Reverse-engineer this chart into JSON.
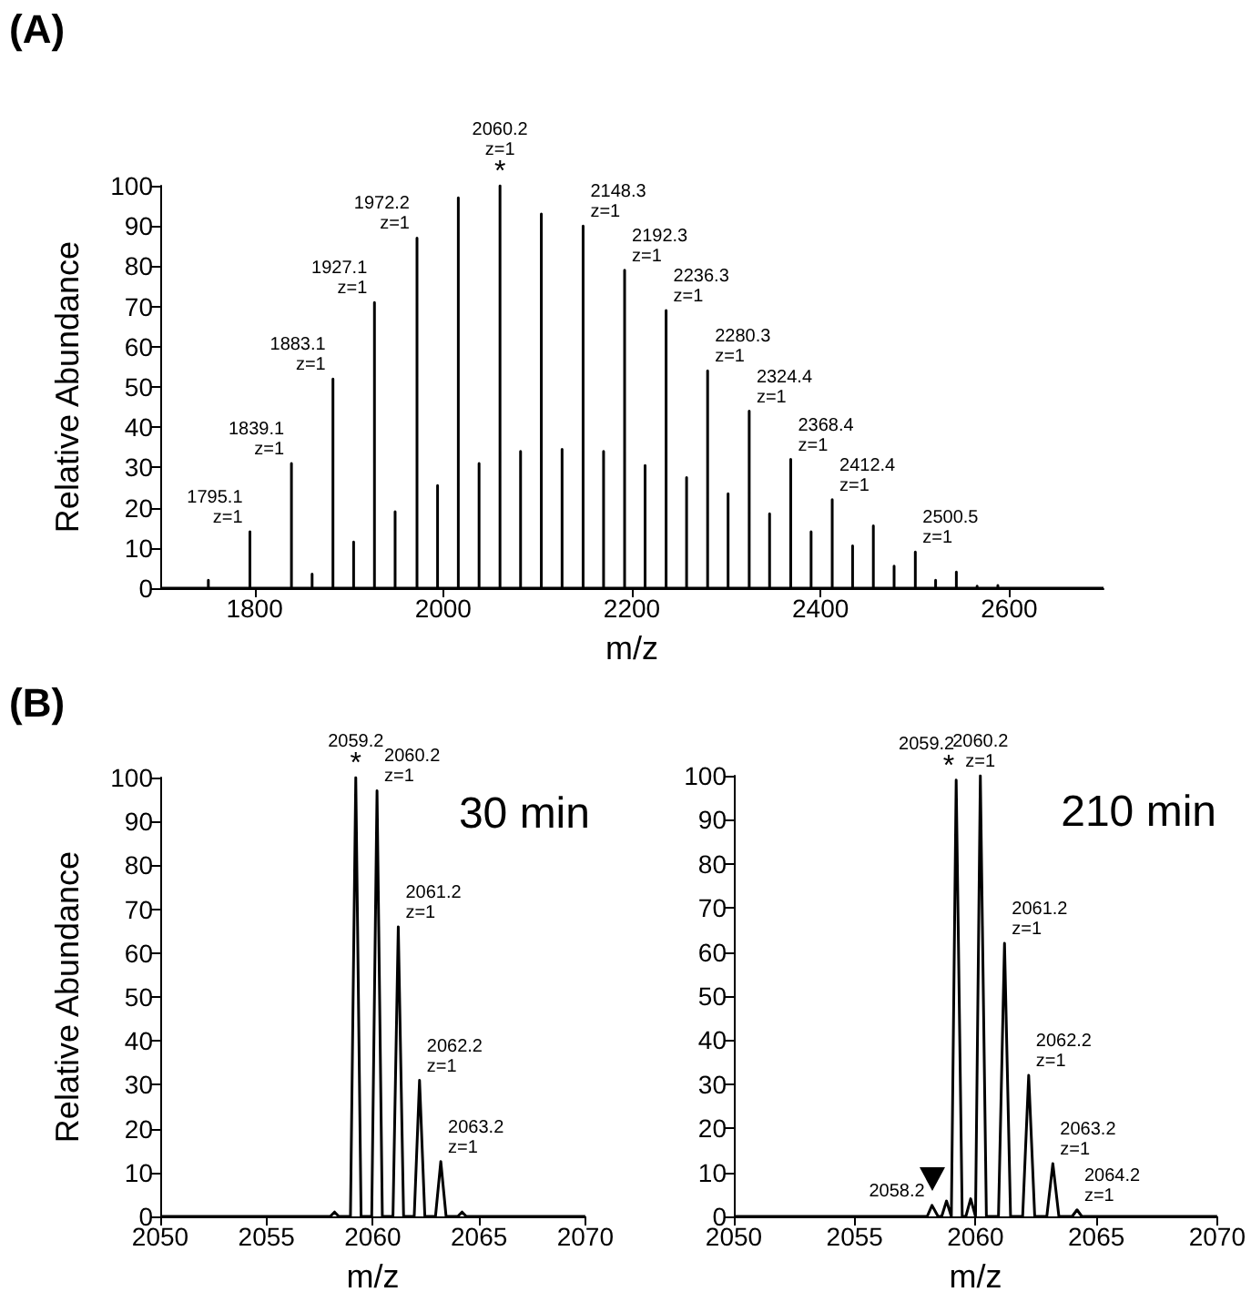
{
  "chart_data": [
    {
      "type": "line",
      "title": "(A)",
      "xlabel": "m/z",
      "ylabel": "Relative Abundance",
      "xlim": [
        1700,
        2700
      ],
      "xticks": [
        1800,
        2000,
        2200,
        2400,
        2600
      ],
      "ylim": [
        0,
        100
      ],
      "yticks": [
        0,
        10,
        20,
        30,
        40,
        50,
        60,
        70,
        80,
        90,
        100
      ],
      "grid": false,
      "marker": "none",
      "line_style": "solid",
      "series": [
        {
          "color": "#000000",
          "x": [
            1700,
            1751,
            1751,
            1751,
            1795.1,
            1795.1,
            1795.1,
            1839.1,
            1839.1,
            1839.1,
            1861,
            1861,
            1861,
            1883.1,
            1883.1,
            1883.1,
            1905,
            1905,
            1905,
            1927.1,
            1927.1,
            1927.1,
            1949,
            1949,
            1949,
            1972.2,
            1972.2,
            1972.2,
            1994,
            1994,
            1994,
            2016,
            2016,
            2016,
            2038,
            2038,
            2038,
            2060.2,
            2060.2,
            2060.2,
            2082,
            2082,
            2082,
            2104,
            2104,
            2104,
            2126,
            2126,
            2126,
            2148.3,
            2148.3,
            2148.3,
            2170,
            2170,
            2170,
            2192.3,
            2192.3,
            2192.3,
            2214,
            2214,
            2214,
            2236.3,
            2236.3,
            2236.3,
            2258,
            2258,
            2258,
            2280.3,
            2280.3,
            2280.3,
            2302,
            2302,
            2302,
            2324.4,
            2324.4,
            2324.4,
            2346,
            2346,
            2346,
            2368.4,
            2368.4,
            2368.4,
            2390,
            2390,
            2390,
            2412.4,
            2412.4,
            2412.4,
            2434,
            2434,
            2434,
            2456,
            2456,
            2456,
            2478,
            2478,
            2478,
            2500.5,
            2500.5,
            2500.5,
            2522,
            2522,
            2522,
            2544,
            2544,
            2544,
            2566,
            2566,
            2566,
            2588,
            2588,
            2588,
            2700
          ],
          "values": [
            0,
            0,
            2,
            0,
            0,
            14,
            0,
            0,
            31,
            0,
            0,
            3.5,
            0,
            0,
            52,
            0,
            0,
            11.5,
            0,
            0,
            71,
            0,
            0,
            19,
            0,
            0,
            87,
            0,
            0,
            25.5,
            0,
            0,
            97,
            0,
            0,
            31,
            0,
            0,
            100,
            0,
            0,
            34,
            0,
            0,
            93,
            0,
            0,
            34.5,
            0,
            0,
            90,
            0,
            0,
            34,
            0,
            0,
            79,
            0,
            0,
            30.5,
            0,
            0,
            69,
            0,
            0,
            27.5,
            0,
            0,
            54,
            0,
            0,
            23.5,
            0,
            0,
            44,
            0,
            0,
            18.5,
            0,
            0,
            32,
            0,
            0,
            14,
            0,
            0,
            22,
            0,
            0,
            10.5,
            0,
            0,
            15.5,
            0,
            0,
            5.5,
            0,
            0,
            9,
            0,
            0,
            2,
            0,
            0,
            4,
            0,
            0,
            0.5,
            0,
            0,
            0.7,
            0,
            0
          ]
        }
      ],
      "annotations": [
        {
          "text": "1795.1\nz=1",
          "x": 1795.1,
          "y": 14
        },
        {
          "text": "1839.1\nz=1",
          "x": 1839.1,
          "y": 31
        },
        {
          "text": "1883.1\nz=1",
          "x": 1883.1,
          "y": 52
        },
        {
          "text": "1927.1\nz=1",
          "x": 1927.1,
          "y": 71
        },
        {
          "text": "1972.2\nz=1",
          "x": 1972.2,
          "y": 87
        },
        {
          "text": "*",
          "x": 2060.2,
          "y": 100
        },
        {
          "text": "2060.2\nz=1",
          "x": 2060.2,
          "y": 100
        },
        {
          "text": "2148.3\nz=1",
          "x": 2148.3,
          "y": 90
        },
        {
          "text": "2192.3\nz=1",
          "x": 2192.3,
          "y": 79
        },
        {
          "text": "2236.3\nz=1",
          "x": 2236.3,
          "y": 69
        },
        {
          "text": "2280.3\nz=1",
          "x": 2280.3,
          "y": 54
        },
        {
          "text": "2324.4\nz=1",
          "x": 2324.4,
          "y": 44
        },
        {
          "text": "2368.4\nz=1",
          "x": 2368.4,
          "y": 32
        },
        {
          "text": "2412.4\nz=1",
          "x": 2412.4,
          "y": 22
        },
        {
          "text": "2500.5\nz=1",
          "x": 2500.5,
          "y": 9
        }
      ]
    },
    {
      "type": "line",
      "title": "(B)",
      "xlabel": "m/z",
      "ylabel": "Relative Abundance",
      "xlim": [
        2050,
        2070
      ],
      "xticks": [
        2050,
        2055,
        2060,
        2065,
        2070
      ],
      "ylim": [
        0,
        100
      ],
      "yticks": [
        0,
        10,
        20,
        30,
        40,
        50,
        60,
        70,
        80,
        90,
        100
      ],
      "grid": false,
      "marker": "none",
      "line_style": "solid",
      "series": [
        {
          "color": "#000000",
          "x": [
            2050,
            2058.0,
            2058.2,
            2058.4,
            2058.95,
            2059.2,
            2059.45,
            2059.95,
            2060.2,
            2060.45,
            2060.95,
            2061.2,
            2061.45,
            2061.95,
            2062.2,
            2062.45,
            2062.95,
            2063.2,
            2063.45,
            2064.0,
            2064.2,
            2064.4,
            2070
          ],
          "values": [
            0,
            0,
            1,
            0,
            0,
            100,
            0,
            0,
            97,
            0,
            0,
            66,
            0,
            0,
            31,
            0,
            0,
            12.5,
            0,
            0,
            1,
            0,
            0
          ]
        }
      ],
      "annotations": [
        "30 min",
        {
          "text": "*",
          "x": 2059.2,
          "y": 100
        },
        {
          "text": "2059.2",
          "x": 2059.2,
          "y": 100
        },
        {
          "text": "2060.2\nz=1",
          "x": 2060.2,
          "y": 97
        },
        {
          "text": "2061.2\nz=1",
          "x": 2061.2,
          "y": 66
        },
        {
          "text": "2062.2\nz=1",
          "x": 2062.2,
          "y": 31
        },
        {
          "text": "2063.2\nz=1",
          "x": 2063.2,
          "y": 12.5
        }
      ]
    },
    {
      "type": "line",
      "xlabel": "m/z",
      "xlim": [
        2050,
        2070
      ],
      "xticks": [
        2050,
        2055,
        2060,
        2065,
        2070
      ],
      "ylim": [
        0,
        100
      ],
      "yticks": [
        0,
        10,
        20,
        30,
        40,
        50,
        60,
        70,
        80,
        90,
        100
      ],
      "grid": false,
      "marker": "none",
      "line_style": "solid",
      "series": [
        {
          "color": "#000000",
          "x": [
            2050,
            2058.0,
            2058.2,
            2058.45,
            2058.6,
            2058.8,
            2059.0,
            2059.2,
            2059.45,
            2059.6,
            2059.8,
            2060.0,
            2060.2,
            2060.45,
            2060.95,
            2061.2,
            2061.45,
            2061.95,
            2062.2,
            2062.45,
            2062.95,
            2063.2,
            2063.45,
            2064.0,
            2064.2,
            2064.4,
            2070
          ],
          "values": [
            0,
            0,
            2.5,
            0,
            0,
            3.5,
            0,
            99,
            0,
            0,
            4,
            0,
            100,
            0,
            0,
            62,
            0,
            0,
            32,
            0,
            0,
            12,
            0,
            0,
            1.5,
            0,
            0
          ]
        }
      ],
      "annotations": [
        "210 min",
        {
          "text": "*",
          "x": 2059.2,
          "y": 99
        },
        {
          "text": "2059.2",
          "x": 2059.2,
          "y": 99
        },
        {
          "text": "2060.2\nz=1",
          "x": 2060.2,
          "y": 100
        },
        {
          "text": "2061.2\nz=1",
          "x": 2061.2,
          "y": 62
        },
        {
          "text": "2062.2\nz=1",
          "x": 2062.2,
          "y": 32
        },
        {
          "text": "2063.2\nz=1",
          "x": 2063.2,
          "y": 12
        },
        {
          "text": "2064.2\nz=1",
          "x": 2064.2,
          "y": 1.5
        },
        {
          "text": "2058.2",
          "x": 2058.2,
          "y": 2.5
        }
      ]
    }
  ]
}
